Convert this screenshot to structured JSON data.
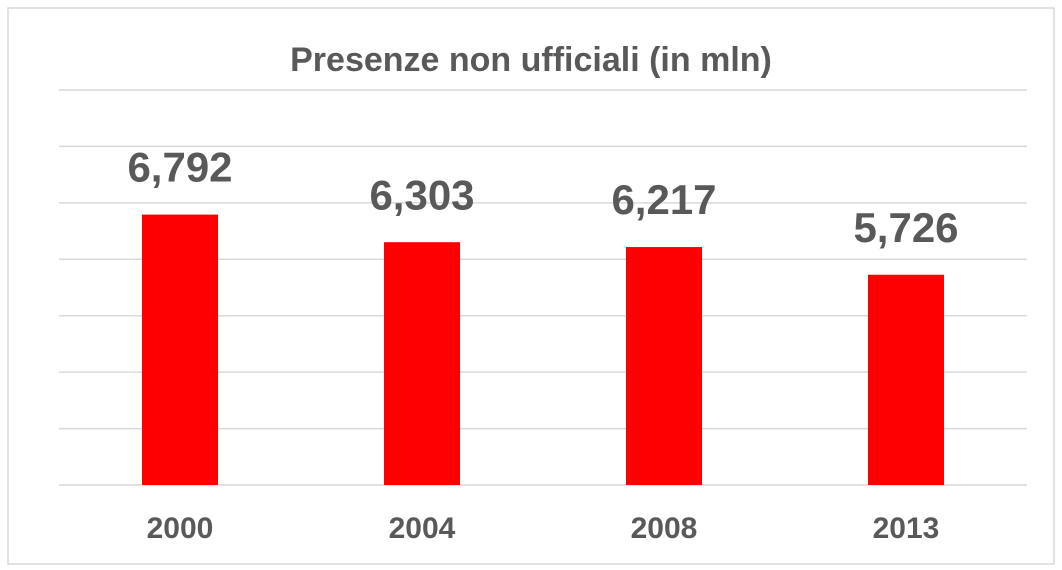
{
  "chart_data": {
    "type": "bar",
    "title": "Presenze non ufficiali (in mln)",
    "categories": [
      "2000",
      "2004",
      "2008",
      "2013"
    ],
    "values": [
      6.792,
      6.303,
      6.217,
      5.726
    ],
    "value_labels": [
      "6,792",
      "6,303",
      "6,217",
      "5,726"
    ],
    "color": "#ff0000",
    "ylim": [
      2,
      9
    ],
    "yticks": [
      2,
      3,
      4,
      5,
      6,
      7,
      8,
      9
    ],
    "grid": true
  }
}
